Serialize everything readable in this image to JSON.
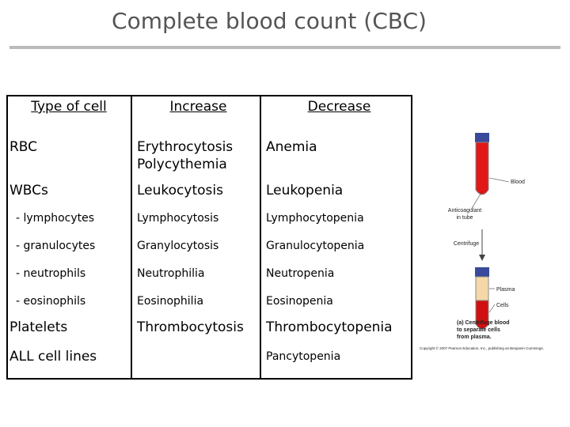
{
  "header": {
    "title": "Complete blood count (CBC)"
  },
  "table": {
    "columns": [
      "Type of cell",
      "Increase",
      "Decrease"
    ],
    "rows": [
      {
        "type": "RBC",
        "increase": [
          "Erythrocytosis",
          "Polycythemia"
        ],
        "decrease": "Anemia"
      },
      {
        "type": "WBCs",
        "increase": "Leukocytosis",
        "decrease": "Leukopenia"
      },
      {
        "type": "- lymphocytes",
        "increase": "Lymphocytosis",
        "decrease": "Lymphocytopenia"
      },
      {
        "type": "- granulocytes",
        "increase": "Granylocytosis",
        "decrease": "Granulocytopenia"
      },
      {
        "type": "- neutrophils",
        "increase": "Neutrophilia",
        "decrease": "Neutropenia"
      },
      {
        "type": "- eosinophils",
        "increase": "Eosinophilia",
        "decrease": "Eosinopenia"
      },
      {
        "type": "Platelets",
        "increase": "Thrombocytosis",
        "decrease": "Thrombocytopenia"
      },
      {
        "type": "ALL cell lines",
        "decrease": "Pancytopenia"
      }
    ]
  },
  "figure": {
    "blood": "Blood",
    "anticoagulant": [
      "Anticoagulant",
      "in tube"
    ],
    "centrifuge": "Centrifuge",
    "plasma": "Plasma",
    "cells": "Cells",
    "caption": [
      "(a) Centrifuge blood",
      "to separate cells",
      "from plasma."
    ],
    "copyright": "Copyright © 2007 Pearson Education, Inc., publishing as Benjamin Cummings."
  }
}
